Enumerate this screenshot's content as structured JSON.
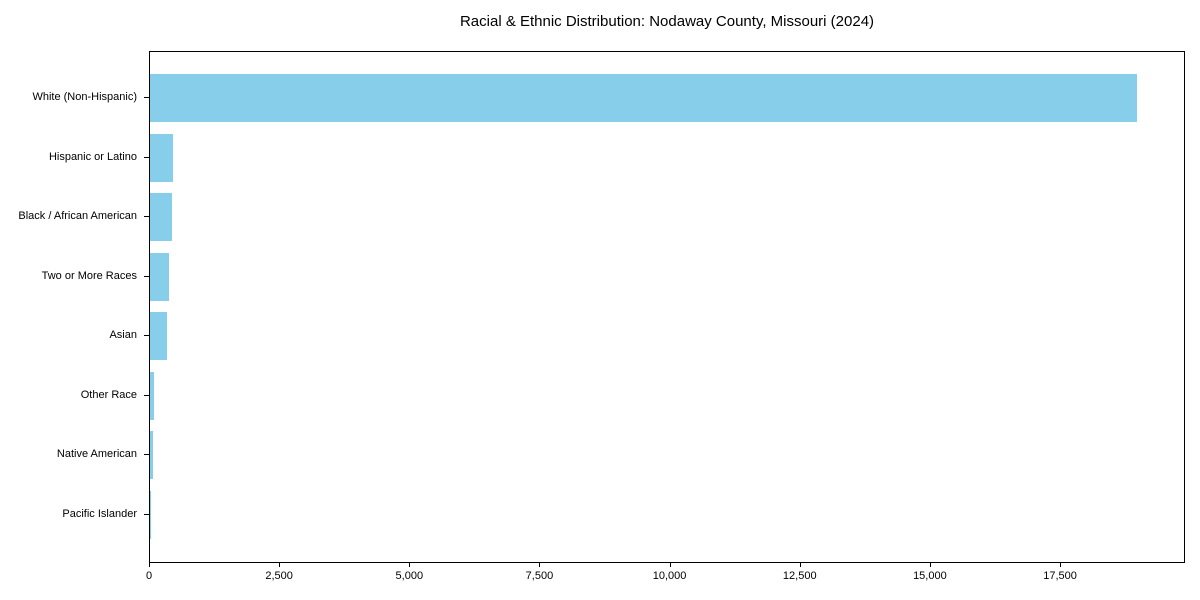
{
  "title": "Racial & Ethnic Distribution: Nodaway County, Missouri (2024)",
  "chart_data": {
    "type": "bar",
    "orientation": "horizontal",
    "title": "Racial & Ethnic Distribution: Nodaway County, Missouri (2024)",
    "xlabel": "",
    "ylabel": "",
    "categories": [
      "White (Non-Hispanic)",
      "Hispanic or Latino",
      "Black / African American",
      "Two or More Races",
      "Asian",
      "Other Race",
      "Native American",
      "Pacific Islander"
    ],
    "values": [
      18950,
      450,
      430,
      370,
      330,
      80,
      55,
      10
    ],
    "xlim": [
      0,
      19900
    ],
    "xticks": [
      0,
      2500,
      5000,
      7500,
      10000,
      12500,
      15000,
      17500
    ],
    "xtick_labels": [
      "0",
      "2,500",
      "5,000",
      "7,500",
      "10,000",
      "12,500",
      "15,000",
      "17,500"
    ],
    "bar_color": "#87CEEB",
    "background_color": "#FFFFFF",
    "spine_color": "#000000",
    "grid": false,
    "legend": false
  }
}
